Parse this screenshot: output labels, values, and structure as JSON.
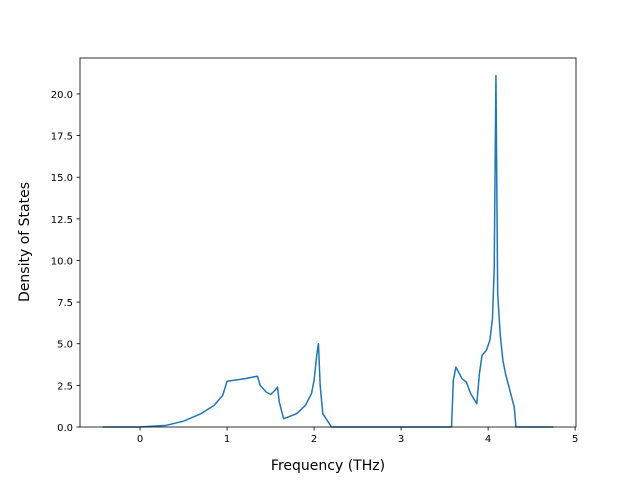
{
  "chart_data": {
    "type": "line",
    "xlabel": "Frequency (THz)",
    "ylabel": "Density of States",
    "x": [
      -0.43,
      0,
      0.3,
      0.5,
      0.7,
      0.85,
      0.95,
      1.0,
      1.2,
      1.35,
      1.38,
      1.45,
      1.5,
      1.55,
      1.58,
      1.6,
      1.65,
      1.8,
      1.9,
      1.97,
      2.0,
      2.03,
      2.05,
      2.07,
      2.1,
      2.15,
      2.2,
      3.58,
      3.6,
      3.63,
      3.67,
      3.7,
      3.75,
      3.8,
      3.87,
      3.9,
      3.93,
      3.98,
      4.02,
      4.05,
      4.07,
      4.09,
      4.11,
      4.14,
      4.17,
      4.2,
      4.3,
      4.32,
      4.75
    ],
    "values": [
      0,
      0,
      0.1,
      0.35,
      0.8,
      1.3,
      1.9,
      2.75,
      2.9,
      3.05,
      2.5,
      2.1,
      1.95,
      2.2,
      2.4,
      1.5,
      0.5,
      0.8,
      1.3,
      2.0,
      2.8,
      4.3,
      5.0,
      2.5,
      0.8,
      0.4,
      0,
      0,
      2.8,
      3.6,
      3.2,
      2.9,
      2.7,
      2.0,
      1.4,
      3.2,
      4.3,
      4.6,
      5.2,
      6.5,
      9.5,
      21.1,
      8,
      5.5,
      4.0,
      3.2,
      1.2,
      0,
      0
    ],
    "color": "#1f77b4",
    "xlim": [
      -0.69,
      5.01
    ],
    "ylim": [
      0,
      22.16
    ],
    "xticks": [
      0,
      1,
      2,
      3,
      4,
      5
    ],
    "yticks": [
      {
        "value": 0,
        "label": "0.0"
      },
      {
        "value": 2.5,
        "label": "2.5"
      },
      {
        "value": 5,
        "label": "5.0"
      },
      {
        "value": 7.5,
        "label": "7.5"
      },
      {
        "value": 10,
        "label": "10.0"
      },
      {
        "value": 12.5,
        "label": "12.5"
      },
      {
        "value": 15,
        "label": "15.0"
      },
      {
        "value": 17.5,
        "label": "17.5"
      },
      {
        "value": 20,
        "label": "20.0"
      }
    ]
  }
}
